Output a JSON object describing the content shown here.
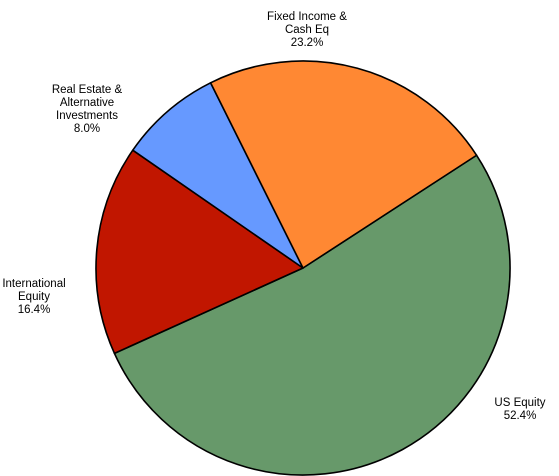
{
  "chart_data": {
    "type": "pie",
    "title": "",
    "slices": [
      {
        "label_lines": [
          "US Equity"
        ],
        "value": 52.4,
        "value_label": "52.4%",
        "color": "#67996a"
      },
      {
        "label_lines": [
          "International",
          "Equity"
        ],
        "value": 16.4,
        "value_label": "16.4%",
        "color": "#c11600"
      },
      {
        "label_lines": [
          "Real Estate &",
          "Alternative",
          "Investments"
        ],
        "value": 8.0,
        "value_label": "8.0%",
        "color": "#6699ff"
      },
      {
        "label_lines": [
          "Fixed Income &",
          "Cash Eq"
        ],
        "value": 23.2,
        "value_label": "23.2%",
        "color": "#ff8833"
      }
    ]
  }
}
